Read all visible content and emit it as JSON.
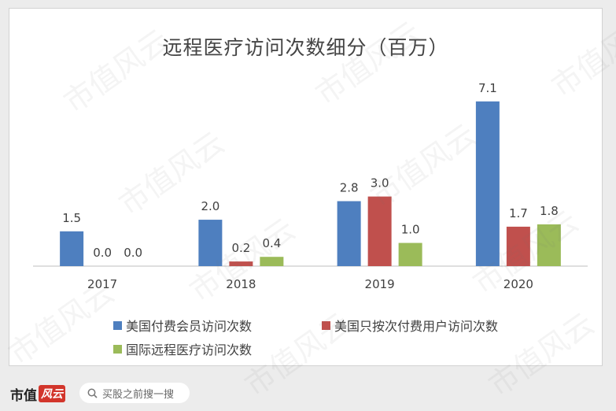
{
  "chart_data": {
    "type": "bar",
    "title": "远程医疗访问次数细分（百万）",
    "categories": [
      "2017",
      "2018",
      "2019",
      "2020"
    ],
    "series": [
      {
        "name": "美国付费会员访问次数",
        "values": [
          1.5,
          2.0,
          2.8,
          7.1
        ],
        "color": "#4e7fbf"
      },
      {
        "name": "美国只按次付费用户访问次数",
        "values": [
          0.0,
          0.2,
          3.0,
          1.7
        ],
        "color": "#c0504d"
      },
      {
        "name": "国际远程医疗访问次数",
        "values": [
          0.0,
          0.4,
          1.0,
          1.8
        ],
        "color": "#9bbb59"
      }
    ],
    "ylim": [
      0,
      7.5
    ],
    "grid": false,
    "legend": "bottom"
  },
  "brand": {
    "name_a": "市值",
    "name_b": "风云"
  },
  "search": {
    "placeholder": "买股之前搜一搜",
    "icon": "search-icon"
  },
  "watermark": {
    "text": "市值风云"
  }
}
